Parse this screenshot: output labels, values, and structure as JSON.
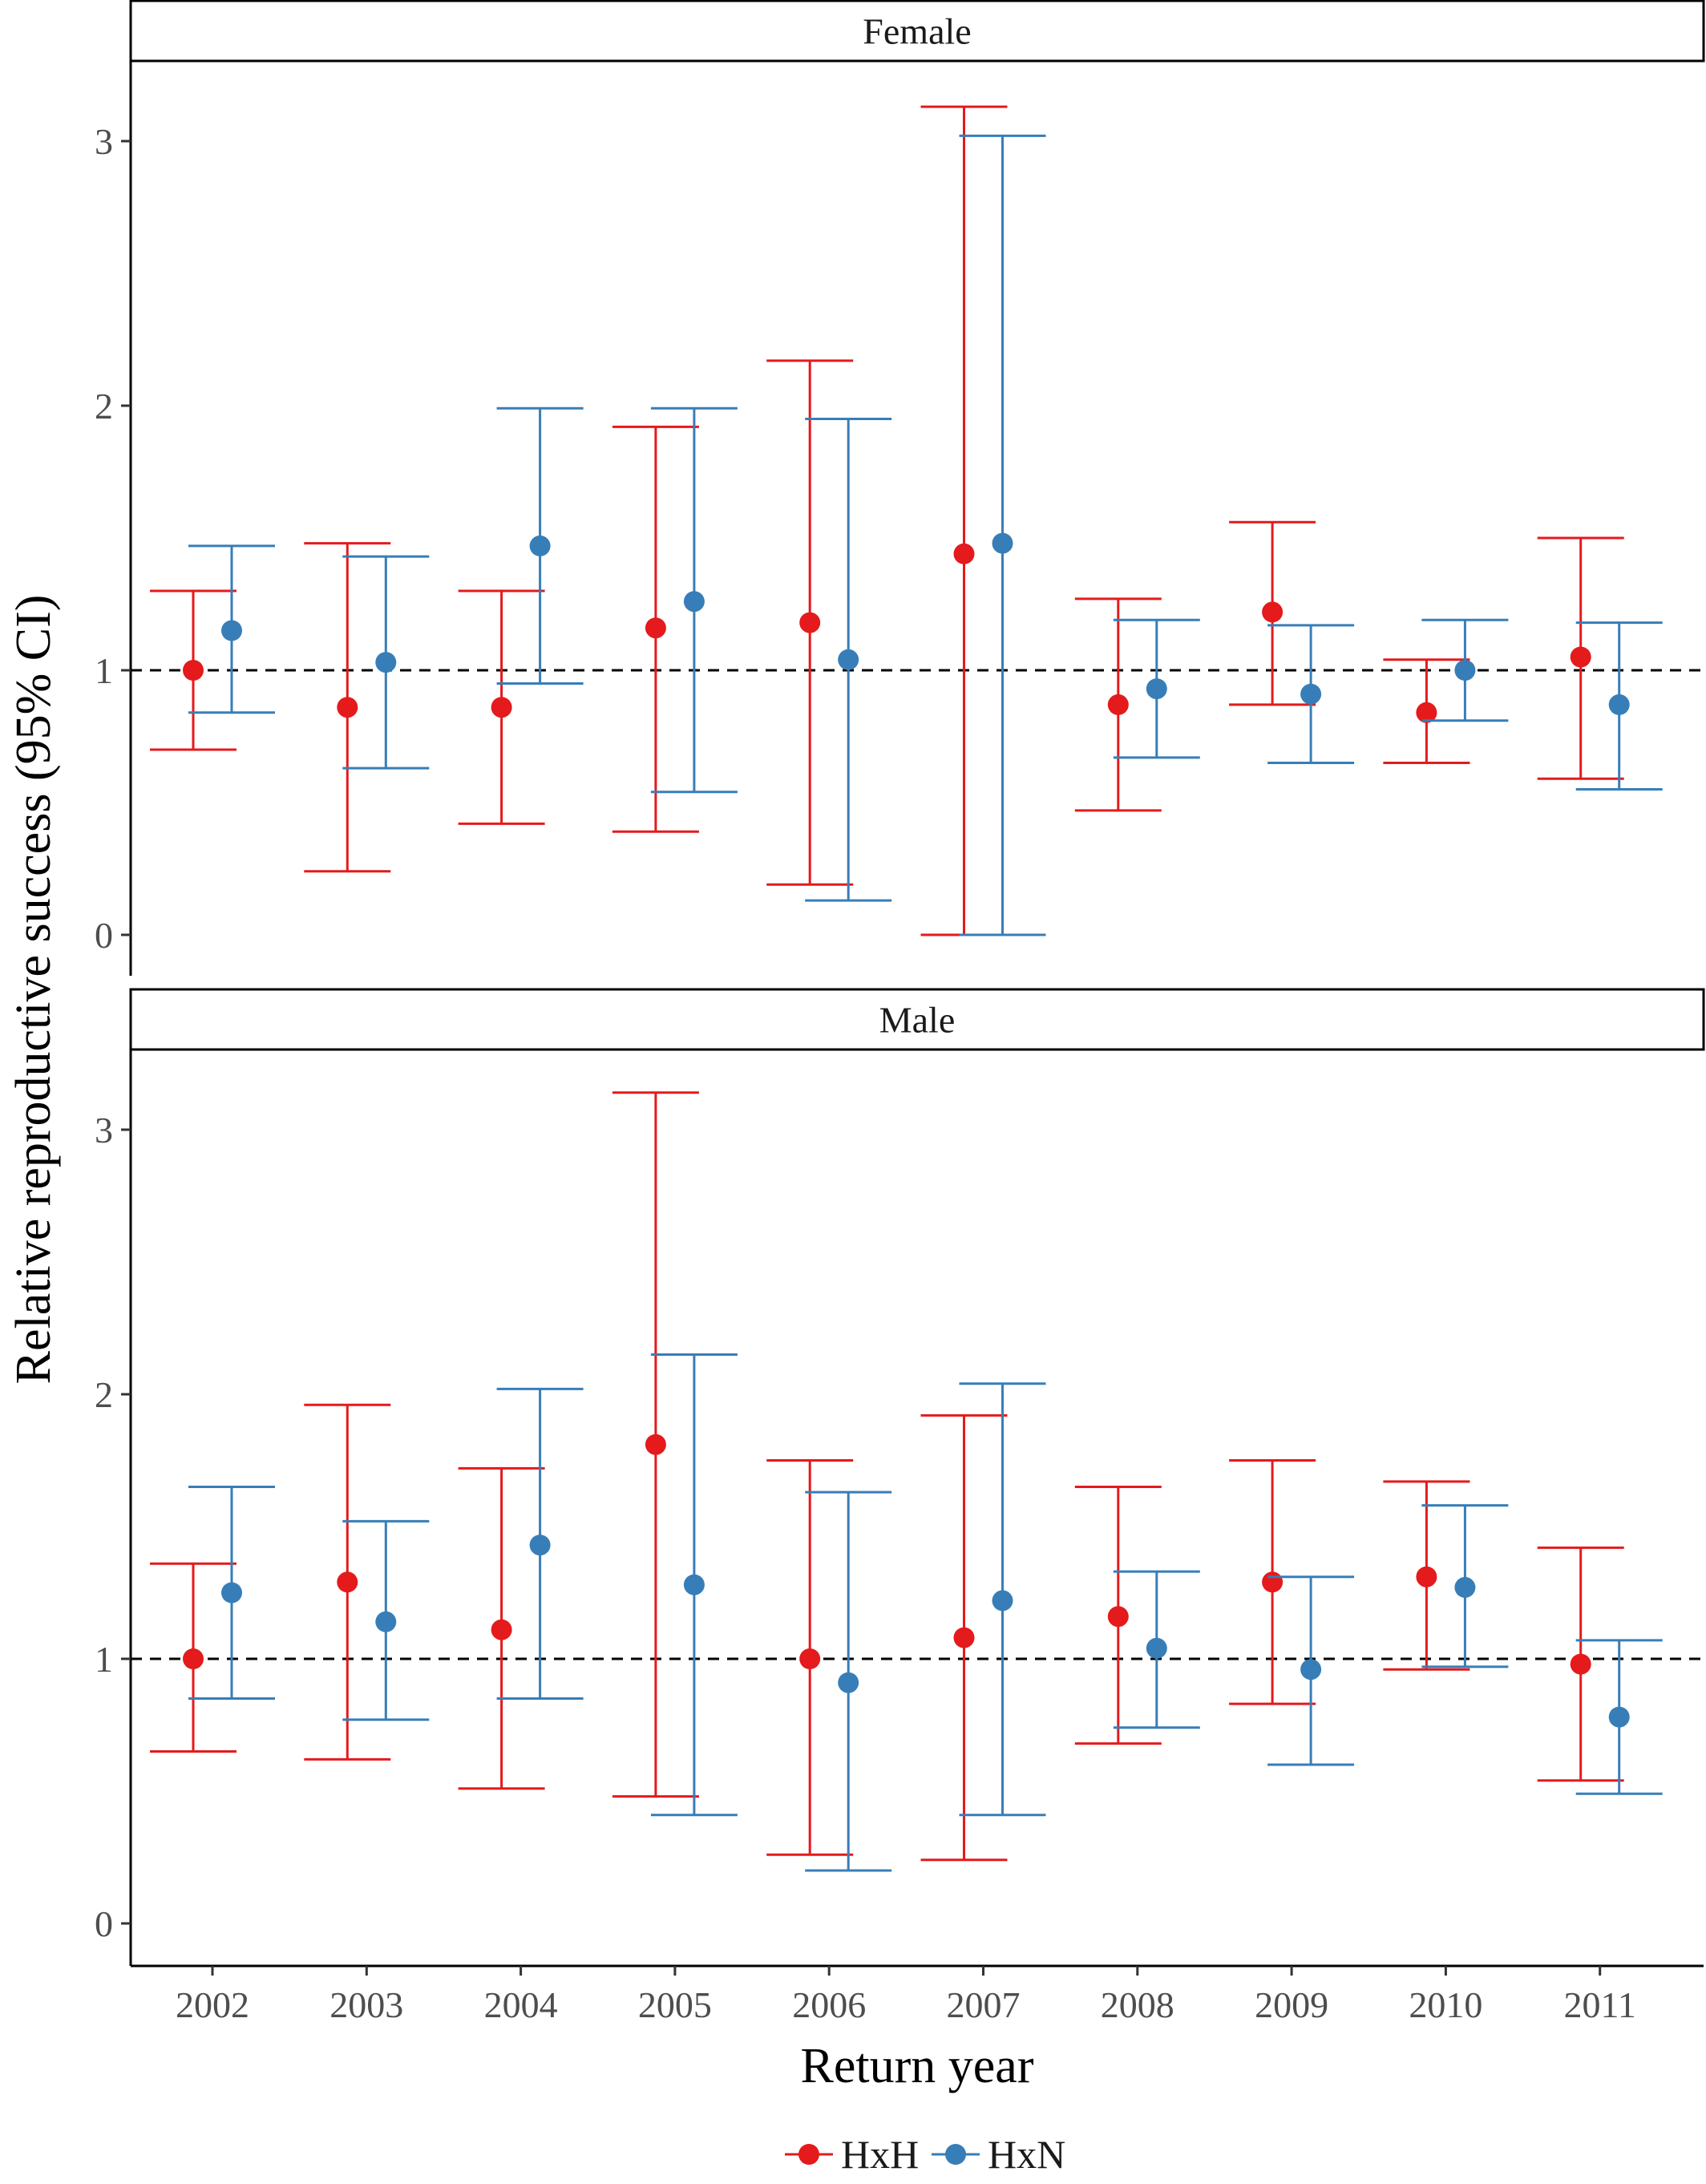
{
  "chart_data": {
    "type": "scatter",
    "subtype": "point-with-errorbars, faceted",
    "xlabel": "Return year",
    "ylabel": "Relative reproductive success (95% CI)",
    "categories": [
      "2002",
      "2003",
      "2004",
      "2005",
      "2006",
      "2007",
      "2008",
      "2009",
      "2010",
      "2011"
    ],
    "ylim": [
      -0.1,
      3.3
    ],
    "yticks": [
      "0",
      "1",
      "2",
      "3"
    ],
    "reference_line": {
      "y": 1,
      "style": "dashed"
    },
    "legend": {
      "position": "bottom",
      "entries": [
        {
          "label": "HxH",
          "color": "#E41A1C"
        },
        {
          "label": "HxN",
          "color": "#377EB8"
        }
      ]
    },
    "panels": [
      {
        "strip": "Female",
        "series": [
          {
            "name": "HxH",
            "color": "#E41A1C",
            "values": [
              1.0,
              0.86,
              0.86,
              1.16,
              1.18,
              1.44,
              0.87,
              1.22,
              0.84,
              1.05
            ],
            "lower": [
              0.7,
              0.24,
              0.42,
              0.39,
              0.19,
              0.0,
              0.47,
              0.87,
              0.65,
              0.59
            ],
            "upper": [
              1.3,
              1.48,
              1.3,
              1.92,
              2.17,
              3.13,
              1.27,
              1.56,
              1.04,
              1.5
            ]
          },
          {
            "name": "HxN",
            "color": "#377EB8",
            "values": [
              1.15,
              1.03,
              1.47,
              1.26,
              1.04,
              1.48,
              0.93,
              0.91,
              1.0,
              0.87
            ],
            "lower": [
              0.84,
              0.63,
              0.95,
              0.54,
              0.13,
              0.0,
              0.67,
              0.65,
              0.81,
              0.55
            ],
            "upper": [
              1.47,
              1.43,
              1.99,
              1.99,
              1.95,
              3.02,
              1.19,
              1.17,
              1.19,
              1.18
            ]
          }
        ]
      },
      {
        "strip": "Male",
        "series": [
          {
            "name": "HxH",
            "color": "#E41A1C",
            "values": [
              1.0,
              1.29,
              1.11,
              1.81,
              1.0,
              1.08,
              1.16,
              1.29,
              1.31,
              0.98
            ],
            "lower": [
              0.65,
              0.62,
              0.51,
              0.48,
              0.26,
              0.24,
              0.68,
              0.83,
              0.96,
              0.54
            ],
            "upper": [
              1.36,
              1.96,
              1.72,
              3.14,
              1.75,
              1.92,
              1.65,
              1.75,
              1.67,
              1.42
            ]
          },
          {
            "name": "HxN",
            "color": "#377EB8",
            "values": [
              1.25,
              1.14,
              1.43,
              1.28,
              0.91,
              1.22,
              1.04,
              0.96,
              1.27,
              0.78
            ],
            "lower": [
              0.85,
              0.77,
              0.85,
              0.41,
              0.2,
              0.41,
              0.74,
              0.6,
              0.97,
              0.49
            ],
            "upper": [
              1.65,
              1.52,
              2.02,
              2.15,
              1.63,
              2.04,
              1.33,
              1.31,
              1.58,
              1.07
            ]
          }
        ]
      }
    ]
  }
}
